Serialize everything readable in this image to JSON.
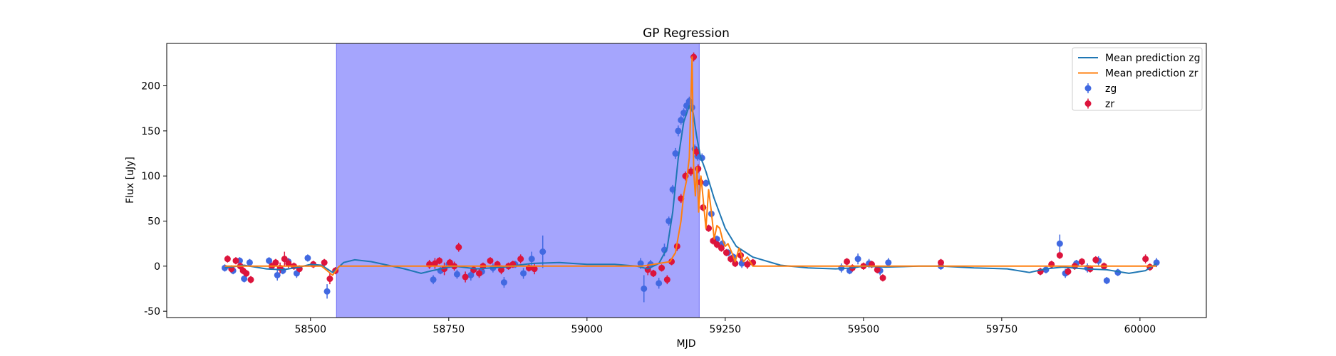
{
  "chart_data": {
    "type": "scatter",
    "title": "GP Regression",
    "xlabel": "MJD",
    "ylabel": "Flux [uJy]",
    "xlim": [
      58240,
      60120
    ],
    "ylim": [
      -57,
      247
    ],
    "xticks": [
      58500,
      58750,
      59000,
      59250,
      59500,
      59750,
      60000
    ],
    "yticks": [
      -50,
      0,
      50,
      100,
      150,
      200
    ],
    "grid": false,
    "legend_position": "top-right",
    "shaded_region": {
      "x_start": 58547,
      "x_end": 59203,
      "color": "#a5a5fd"
    },
    "series": [
      {
        "name": "Mean prediction zg",
        "kind": "line",
        "color": "#1f77b4",
        "x": [
          58345,
          58380,
          58420,
          58450,
          58480,
          58500,
          58520,
          58540,
          58560,
          58580,
          58610,
          58640,
          58670,
          58700,
          58720,
          58760,
          58800,
          58850,
          58900,
          58950,
          59000,
          59050,
          59090,
          59110,
          59130,
          59145,
          59155,
          59165,
          59175,
          59185,
          59192,
          59198,
          59205,
          59215,
          59230,
          59250,
          59270,
          59300,
          59350,
          59400,
          59450,
          59480,
          59500,
          59540,
          59600,
          59640,
          59700,
          59760,
          59800,
          59830,
          59860,
          59900,
          59940,
          59980,
          60010,
          60030
        ],
        "y": [
          -2,
          1,
          -3,
          -4,
          -1,
          2,
          1,
          -7,
          4,
          7,
          5,
          1,
          -3,
          -8,
          -5,
          0,
          -3,
          -1,
          3,
          4,
          2,
          2,
          0,
          -3,
          3,
          20,
          60,
          120,
          160,
          178,
          170,
          145,
          122,
          105,
          75,
          42,
          22,
          10,
          1,
          -2,
          -3,
          -2,
          0,
          -1,
          0,
          0,
          -2,
          -3,
          -7,
          -3,
          -1,
          -3,
          -4,
          -8,
          -5,
          3
        ]
      },
      {
        "name": "Mean prediction zr",
        "kind": "line",
        "color": "#ff7f0e",
        "x": [
          58345,
          58520,
          58530,
          58540,
          58552,
          58700,
          59100,
          59150,
          59160,
          59170,
          59175,
          59180,
          59185,
          59190,
          59193,
          59196,
          59199,
          59202,
          59206,
          59210,
          59215,
          59220,
          59225,
          59230,
          59235,
          59240,
          59245,
          59250,
          59255,
          59262,
          59268,
          59275,
          59283,
          59290,
          59300,
          59400,
          59800,
          60030
        ],
        "y": [
          0,
          0,
          -5,
          -10,
          0,
          0,
          0,
          5,
          15,
          50,
          80,
          95,
          120,
          232,
          105,
          78,
          110,
          60,
          100,
          75,
          42,
          85,
          60,
          30,
          45,
          42,
          30,
          22,
          25,
          15,
          5,
          20,
          5,
          10,
          0,
          0,
          0,
          0
        ]
      },
      {
        "name": "zg",
        "kind": "errorbar",
        "color": "#4169e1",
        "x": [
          58345,
          58360,
          58372,
          58380,
          58390,
          58425,
          58440,
          58450,
          58460,
          58475,
          58495,
          58530,
          58722,
          58735,
          58750,
          58765,
          58790,
          58810,
          58830,
          58850,
          58870,
          58885,
          58900,
          58920,
          59097,
          59103,
          59115,
          59130,
          59140,
          59148,
          59155,
          59160,
          59165,
          59170,
          59175,
          59180,
          59185,
          59190,
          59195,
          59200,
          59208,
          59215,
          59225,
          59235,
          59245,
          59255,
          59265,
          59280,
          59460,
          59475,
          59490,
          59510,
          59530,
          59545,
          59640,
          59830,
          59855,
          59865,
          59885,
          59905,
          59925,
          59940,
          59960,
          60030
        ],
        "y": [
          -2,
          -5,
          6,
          -14,
          4,
          6,
          -10,
          -5,
          5,
          -8,
          9,
          -28,
          -15,
          -5,
          2,
          -9,
          -10,
          -6,
          -2,
          -18,
          2,
          -8,
          8,
          16,
          3,
          -25,
          2,
          -19,
          18,
          50,
          85,
          125,
          150,
          162,
          170,
          178,
          183,
          176,
          130,
          122,
          120,
          92,
          58,
          30,
          25,
          15,
          10,
          3,
          -2,
          -5,
          8,
          3,
          -5,
          4,
          0,
          -4,
          25,
          -8,
          3,
          -2,
          6,
          -16,
          -7,
          4
        ],
        "err": [
          4,
          4,
          4,
          4,
          4,
          4,
          6,
          4,
          4,
          5,
          4,
          8,
          5,
          4,
          4,
          5,
          6,
          4,
          5,
          6,
          4,
          6,
          8,
          18,
          6,
          15,
          5,
          6,
          7,
          5,
          5,
          6,
          6,
          5,
          5,
          6,
          5,
          5,
          5,
          5,
          5,
          4,
          4,
          4,
          4,
          4,
          4,
          5,
          5,
          4,
          6,
          5,
          5,
          5,
          4,
          4,
          10,
          5,
          4,
          5,
          5,
          4,
          4,
          5
        ]
      },
      {
        "name": "zr",
        "kind": "errorbar",
        "color": "#dc143c",
        "x": [
          58350,
          58357,
          58365,
          58373,
          58378,
          58384,
          58392,
          58430,
          58437,
          58445,
          58453,
          58460,
          58470,
          58480,
          58505,
          58525,
          58535,
          58545,
          58715,
          58725,
          58733,
          58742,
          58752,
          58760,
          58768,
          58780,
          58795,
          58805,
          58812,
          58825,
          58838,
          58845,
          58858,
          58866,
          58880,
          58895,
          58905,
          59110,
          59120,
          59135,
          59145,
          59153,
          59163,
          59170,
          59178,
          59188,
          59193,
          59198,
          59201,
          59205,
          59210,
          59220,
          59228,
          59235,
          59243,
          59252,
          59260,
          59268,
          59278,
          59290,
          59300,
          59470,
          59480,
          59500,
          59515,
          59525,
          59535,
          59640,
          59820,
          59840,
          59855,
          59870,
          59882,
          59895,
          59910,
          59920,
          59935,
          60010,
          60018
        ],
        "y": [
          8,
          -3,
          6,
          0,
          -5,
          -8,
          -15,
          0,
          4,
          -2,
          8,
          3,
          0,
          -3,
          2,
          4,
          -14,
          -5,
          2,
          3,
          6,
          -3,
          4,
          0,
          21,
          -12,
          -4,
          -8,
          0,
          6,
          2,
          -4,
          0,
          2,
          8,
          -2,
          -3,
          -4,
          -8,
          -2,
          -15,
          5,
          22,
          75,
          100,
          105,
          232,
          127,
          108,
          93,
          65,
          42,
          28,
          24,
          20,
          15,
          8,
          3,
          12,
          2,
          4,
          5,
          -2,
          0,
          2,
          -4,
          -13,
          4,
          -6,
          2,
          12,
          -6,
          0,
          5,
          -3,
          7,
          0,
          8,
          -1
        ],
        "err": [
          4,
          4,
          4,
          4,
          4,
          4,
          4,
          4,
          4,
          6,
          8,
          5,
          4,
          4,
          4,
          4,
          6,
          4,
          5,
          6,
          4,
          7,
          4,
          5,
          5,
          6,
          4,
          5,
          4,
          4,
          4,
          5,
          4,
          4,
          5,
          4,
          6,
          6,
          4,
          4,
          5,
          4,
          5,
          5,
          5,
          5,
          5,
          5,
          5,
          5,
          4,
          4,
          4,
          4,
          4,
          4,
          4,
          4,
          6,
          5,
          4,
          4,
          4,
          4,
          4,
          4,
          4,
          4,
          4,
          4,
          4,
          4,
          4,
          4,
          4,
          4,
          4,
          5,
          4
        ]
      }
    ]
  }
}
